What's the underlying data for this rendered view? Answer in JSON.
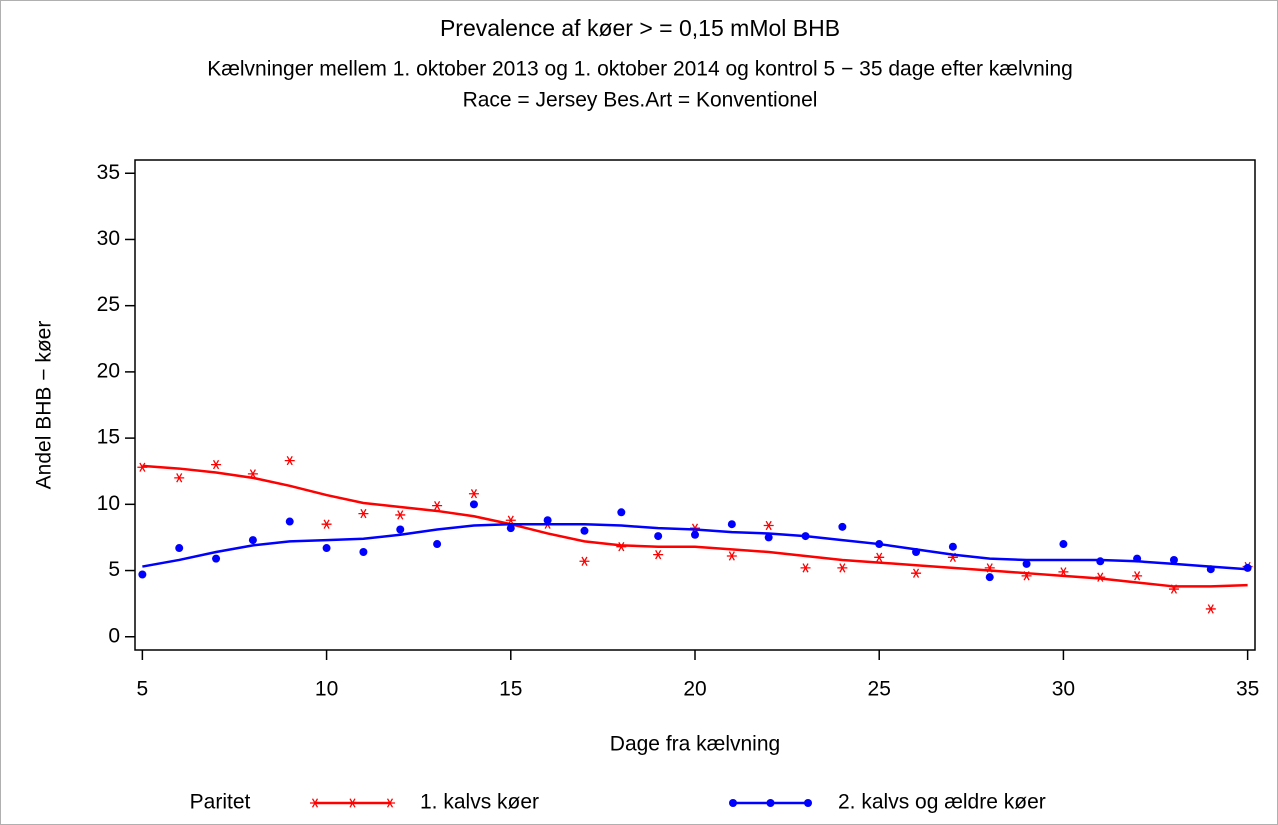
{
  "chart_data": {
    "type": "scatter",
    "title": "Prevalence af køer  > = 0,15  mMol  BHB",
    "subtitle": "Kælvninger mellem 1. oktober 2013 og 1. oktober 2014 og kontrol 5 − 35 dage efter kælvning",
    "subtitle2": "Race = Jersey  Bes.Art = Konventionel",
    "x_label": "Dage fra kælvning",
    "y_label": "Andel BHB − køer",
    "legend_title": "Paritet",
    "x": [
      5,
      6,
      7,
      8,
      9,
      10,
      11,
      12,
      13,
      14,
      15,
      16,
      17,
      18,
      19,
      20,
      21,
      22,
      23,
      24,
      25,
      26,
      27,
      28,
      29,
      30,
      31,
      32,
      33,
      34,
      35
    ],
    "series": [
      {
        "name": "1. kalvs køer",
        "color": "#ff0000",
        "marker": "star",
        "values": [
          12.8,
          12.0,
          13.0,
          12.3,
          13.3,
          8.5,
          9.3,
          9.2,
          9.9,
          10.8,
          8.8,
          8.5,
          5.7,
          6.8,
          6.2,
          8.2,
          6.1,
          8.4,
          5.2,
          5.2,
          6.0,
          4.8,
          6.0,
          5.2,
          4.6,
          4.9,
          4.5,
          4.6,
          3.6,
          2.1,
          5.3
        ],
        "fit": [
          12.9,
          12.7,
          12.4,
          12.0,
          11.4,
          10.7,
          10.1,
          9.8,
          9.5,
          9.1,
          8.5,
          7.8,
          7.2,
          6.9,
          6.8,
          6.8,
          6.6,
          6.4,
          6.1,
          5.8,
          5.6,
          5.4,
          5.2,
          5.0,
          4.8,
          4.6,
          4.4,
          4.1,
          3.8,
          3.8,
          3.9
        ]
      },
      {
        "name": "2. kalvs og ældre køer",
        "color": "#0000ff",
        "marker": "dot",
        "values": [
          4.7,
          6.7,
          5.9,
          7.3,
          8.7,
          6.7,
          6.4,
          8.1,
          7.0,
          10.0,
          8.2,
          8.8,
          8.0,
          9.4,
          7.6,
          7.7,
          8.5,
          7.5,
          7.6,
          8.3,
          7.0,
          6.4,
          6.8,
          4.5,
          5.5,
          7.0,
          5.7,
          5.9,
          5.8,
          5.1,
          5.2
        ],
        "fit": [
          5.3,
          5.8,
          6.4,
          6.9,
          7.2,
          7.3,
          7.4,
          7.7,
          8.1,
          8.4,
          8.5,
          8.5,
          8.5,
          8.4,
          8.2,
          8.1,
          7.9,
          7.8,
          7.6,
          7.3,
          7.0,
          6.6,
          6.2,
          5.9,
          5.8,
          5.8,
          5.8,
          5.7,
          5.5,
          5.3,
          5.1
        ]
      }
    ],
    "xlim": [
      4.8,
      35.2
    ],
    "ylim": [
      -1,
      36
    ],
    "xticks": [
      5,
      10,
      15,
      20,
      25,
      30,
      35
    ],
    "yticks": [
      0,
      5,
      10,
      15,
      20,
      25,
      30,
      35
    ],
    "legend_position": "bottom"
  }
}
